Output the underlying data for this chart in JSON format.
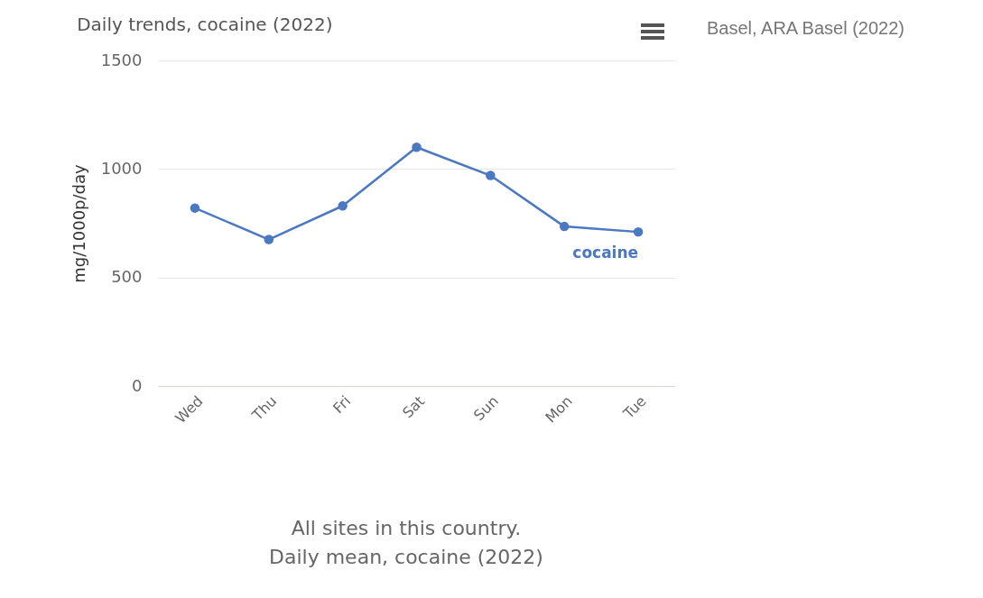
{
  "chart_data": {
    "type": "line",
    "title": "Daily trends, cocaine (2022)",
    "ylabel": "mg/1000p/day",
    "categories": [
      "Wed",
      "Thu",
      "Fri",
      "Sat",
      "Sun",
      "Mon",
      "Tue"
    ],
    "series": [
      {
        "name": "cocaine",
        "color": "#4a78c2",
        "values": [
          820,
          675,
          830,
          1100,
          970,
          735,
          710
        ]
      }
    ],
    "ylim": [
      0,
      1500
    ],
    "yticks": [
      0,
      500,
      1000,
      1500
    ],
    "grid": "y",
    "marker": "circle",
    "line_style": "solid",
    "annotations": [
      "Basel, ARA Basel (2022)",
      "All sites in this country.",
      "Daily mean, cocaine (2022)"
    ]
  }
}
